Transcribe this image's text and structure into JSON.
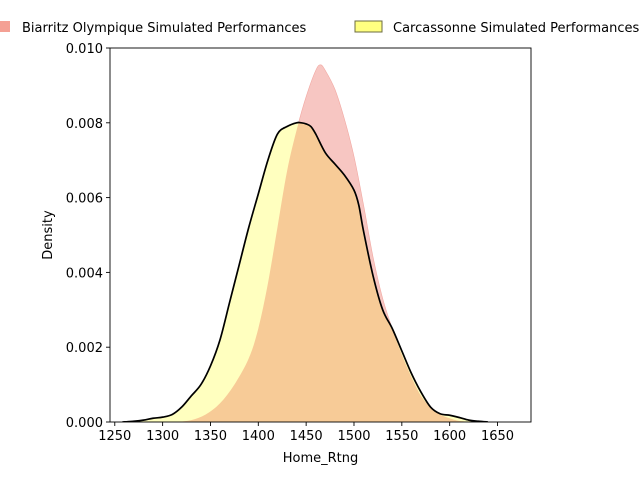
{
  "chart_data": {
    "type": "area",
    "title": "",
    "xlabel": "Home_Rtng",
    "ylabel": "Density",
    "xlim": [
      1245,
      1685
    ],
    "ylim": [
      0,
      0.01
    ],
    "xticks": [
      1250,
      1300,
      1350,
      1400,
      1450,
      1500,
      1550,
      1600,
      1650
    ],
    "yticks": [
      "0.000",
      "0.002",
      "0.004",
      "0.006",
      "0.008",
      "0.010"
    ],
    "grid": false,
    "legend_placement": "top, above plot",
    "series": [
      {
        "name": "Biarritz Olympique Simulated Performances",
        "color": "#f08070",
        "fill": "#f7c6c2",
        "outline": false,
        "x": [
          1315,
          1330,
          1345,
          1360,
          1375,
          1390,
          1400,
          1410,
          1420,
          1430,
          1440,
          1450,
          1460,
          1465,
          1470,
          1480,
          1490,
          1500,
          1510,
          1520,
          1530,
          1540,
          1550,
          1560,
          1570,
          1580,
          1590,
          1600,
          1610,
          1625
        ],
        "values": [
          0.0,
          5e-05,
          0.0002,
          0.0005,
          0.001,
          0.0017,
          0.0025,
          0.0037,
          0.0052,
          0.0067,
          0.0078,
          0.0087,
          0.0094,
          0.00955,
          0.0094,
          0.0089,
          0.0081,
          0.0071,
          0.0058,
          0.0044,
          0.0033,
          0.0025,
          0.0018,
          0.0012,
          0.0007,
          0.0004,
          0.0002,
          0.0001,
          3e-05,
          0.0
        ]
      },
      {
        "name": "Carcassonne Simulated Performances",
        "color": "#ffff80",
        "fill": "#ffffbf",
        "outline": true,
        "x": [
          1258,
          1270,
          1280,
          1290,
          1300,
          1310,
          1320,
          1330,
          1340,
          1350,
          1360,
          1370,
          1380,
          1390,
          1400,
          1410,
          1420,
          1430,
          1440,
          1445,
          1450,
          1455,
          1460,
          1470,
          1480,
          1490,
          1500,
          1505,
          1510,
          1520,
          1530,
          1540,
          1550,
          1560,
          1570,
          1580,
          1590,
          1600,
          1610,
          1620,
          1630,
          1640
        ],
        "values": [
          0.0,
          2e-05,
          5e-05,
          0.0001,
          0.00013,
          0.0002,
          0.0004,
          0.0007,
          0.001,
          0.0015,
          0.0022,
          0.0032,
          0.0042,
          0.0052,
          0.0061,
          0.007,
          0.0077,
          0.0079,
          0.008,
          0.008,
          0.00797,
          0.0079,
          0.0077,
          0.0072,
          0.0069,
          0.0066,
          0.0062,
          0.0058,
          0.0051,
          0.0039,
          0.003,
          0.0025,
          0.0019,
          0.0013,
          0.0008,
          0.0004,
          0.00022,
          0.00018,
          0.00012,
          5e-05,
          2e-05,
          0.0
        ]
      }
    ],
    "overlap_fill": "#f7cb97"
  }
}
